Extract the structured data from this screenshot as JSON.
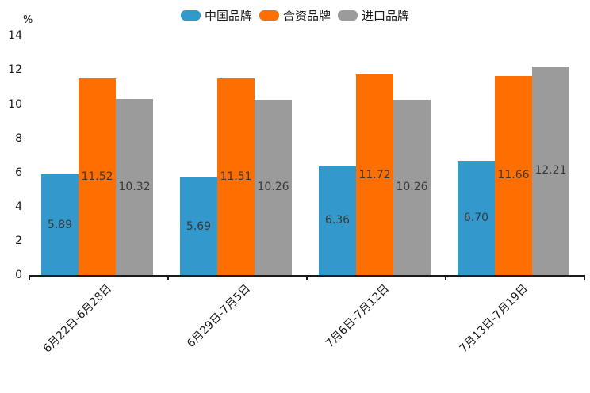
{
  "chart_data": {
    "type": "bar",
    "title": "",
    "unit_label": "%",
    "categories": [
      "6月22日-6月28日",
      "6月29日-7月5日",
      "7月6日-7月12日",
      "7月13日-7月19日"
    ],
    "series": [
      {
        "name": "中国品牌",
        "color": "#3398CC",
        "values": [
          5.89,
          5.69,
          6.36,
          6.7
        ]
      },
      {
        "name": "合资品牌",
        "color": "#FF6E00",
        "values": [
          11.52,
          11.51,
          11.72,
          11.66
        ]
      },
      {
        "name": "进口品牌",
        "color": "#9B9B9B",
        "values": [
          10.32,
          10.26,
          10.26,
          12.21
        ]
      }
    ],
    "ylim": [
      0,
      14
    ],
    "yticks": [
      0,
      2,
      4,
      6,
      8,
      10,
      12,
      14
    ],
    "grid": false,
    "legend_position": "top",
    "bar_label_position": "center",
    "bar_label_decimals": 2,
    "x_label_rotation_deg": 45
  },
  "colors": {
    "background": "#FFFFFF",
    "axis": "#1A1A1A",
    "tick_label_text": "#1A1A1A",
    "bar_value_label_text": "#3A3A3A",
    "series_blue": "#3398CC",
    "series_orange": "#FF6E00",
    "series_gray": "#9B9B9B"
  }
}
